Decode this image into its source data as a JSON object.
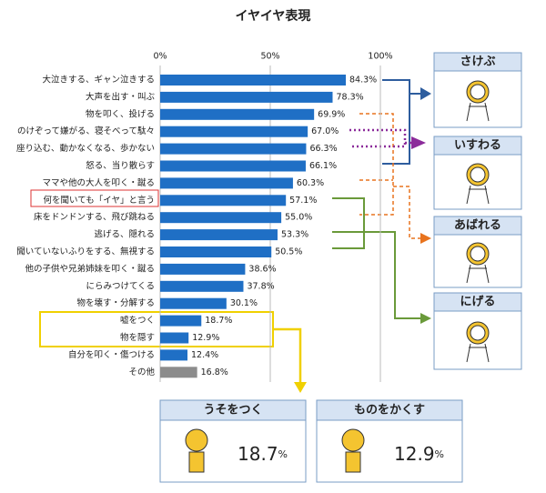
{
  "chart_data": {
    "type": "bar",
    "orientation": "horizontal",
    "title": "イヤイヤ表現",
    "categories": [
      "大泣きする、ギャン泣きする",
      "大声を出す・叫ぶ",
      "物を叩く、投げる",
      "のけぞって嫌がる、寝そべって駄々",
      "座り込む、動かなくなる、歩かない",
      "怒る、当り散らす",
      "ママや他の大人を叩く・蹴る",
      "何を聞いても「イヤ」と言う",
      "床をドンドンする、飛び跳ねる",
      "逃げる、隠れる",
      "聞いていないふりをする、無視する",
      "他の子供や兄弟姉妹を叩く・蹴る",
      "にらみつけてくる",
      "物を壊す・分解する",
      "嘘をつく",
      "物を隠す",
      "自分を叩く・傷つける",
      "その他"
    ],
    "values": [
      84.3,
      78.3,
      69.9,
      67.0,
      66.3,
      66.1,
      60.3,
      57.1,
      55.0,
      53.3,
      50.5,
      38.6,
      37.8,
      30.1,
      18.7,
      12.9,
      12.4,
      16.8
    ],
    "value_labels": [
      "84.3%",
      "78.3%",
      "69.9%",
      "67.0%",
      "66.3%",
      "66.1%",
      "60.3%",
      "57.1%",
      "55.0%",
      "53.3%",
      "50.5%",
      "38.6%",
      "37.8%",
      "30.1%",
      "18.7%",
      "12.9%",
      "12.4%",
      "16.8%"
    ],
    "colors": [
      "#1f6fc5",
      "#1f6fc5",
      "#1f6fc5",
      "#1f6fc5",
      "#1f6fc5",
      "#1f6fc5",
      "#1f6fc5",
      "#1f6fc5",
      "#1f6fc5",
      "#1f6fc5",
      "#1f6fc5",
      "#1f6fc5",
      "#1f6fc5",
      "#1f6fc5",
      "#1f6fc5",
      "#1f6fc5",
      "#1f6fc5",
      "#8c8c8c"
    ],
    "xlim": [
      0,
      100
    ],
    "xticks": [
      {
        "value": 0,
        "label": "0%"
      },
      {
        "value": 50,
        "label": "50%"
      },
      {
        "value": 100,
        "label": "100%"
      }
    ],
    "grid": true
  },
  "groups": [
    {
      "label": "さけぶ"
    },
    {
      "label": "いすわる"
    },
    {
      "label": "あばれる"
    },
    {
      "label": "にげる"
    }
  ],
  "callouts": [
    {
      "label": "うそをつく",
      "value": 18.7,
      "unit": "%"
    },
    {
      "label": "ものをかくす",
      "value": 12.9,
      "unit": "%"
    }
  ]
}
